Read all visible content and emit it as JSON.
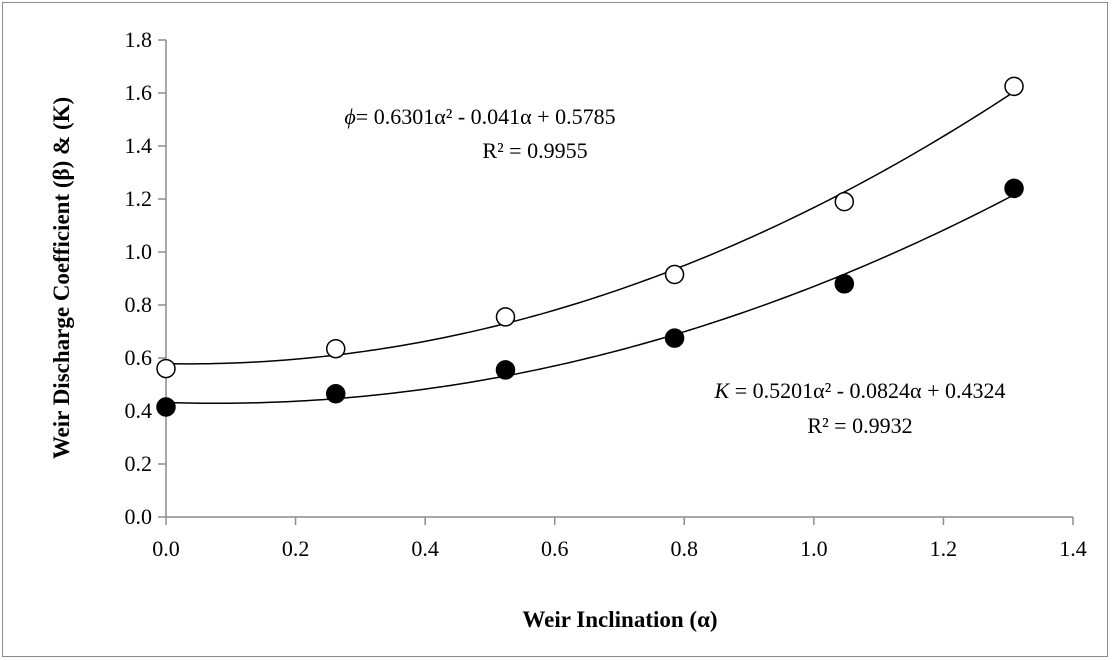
{
  "chart_data": {
    "type": "scatter",
    "title": "",
    "xlabel": "Weir Inclination (α)",
    "ylabel": "Weir Discharge Coefficient (β) & (K)",
    "xlim": [
      0,
      1.4
    ],
    "ylim": [
      0,
      1.8
    ],
    "x_ticks": [
      "0.0",
      "0.2",
      "0.4",
      "0.6",
      "0.8",
      "1.0",
      "1.2",
      "1.4"
    ],
    "y_ticks": [
      "0.0",
      "0.2",
      "0.4",
      "0.6",
      "0.8",
      "1.0",
      "1.2",
      "1.4",
      "1.6",
      "1.8"
    ],
    "grid": false,
    "series": [
      {
        "marker": "open-circle",
        "color": "#000000",
        "x": [
          0.0,
          0.262,
          0.524,
          0.785,
          1.047,
          1.309
        ],
        "y": [
          0.56,
          0.635,
          0.755,
          0.915,
          1.19,
          1.625
        ],
        "trendline": {
          "type": "polynomial",
          "a2": 0.6301,
          "a1": -0.041,
          "a0": 0.5785
        },
        "equation": {
          "symbol": "ϕ",
          "text": "= 0.6301α² - 0.041α + 0.5785",
          "r2": "R² = 0.9955"
        }
      },
      {
        "marker": "filled-circle",
        "color": "#000000",
        "x": [
          0.0,
          0.262,
          0.524,
          0.785,
          1.047,
          1.309
        ],
        "y": [
          0.415,
          0.465,
          0.555,
          0.675,
          0.88,
          1.24
        ],
        "trendline": {
          "type": "polynomial",
          "a2": 0.5201,
          "a1": -0.0824,
          "a0": 0.4324
        },
        "equation": {
          "symbol": "K",
          "text": " = 0.5201α² - 0.0824α + 0.4324",
          "r2": "R² = 0.9932"
        }
      }
    ]
  }
}
